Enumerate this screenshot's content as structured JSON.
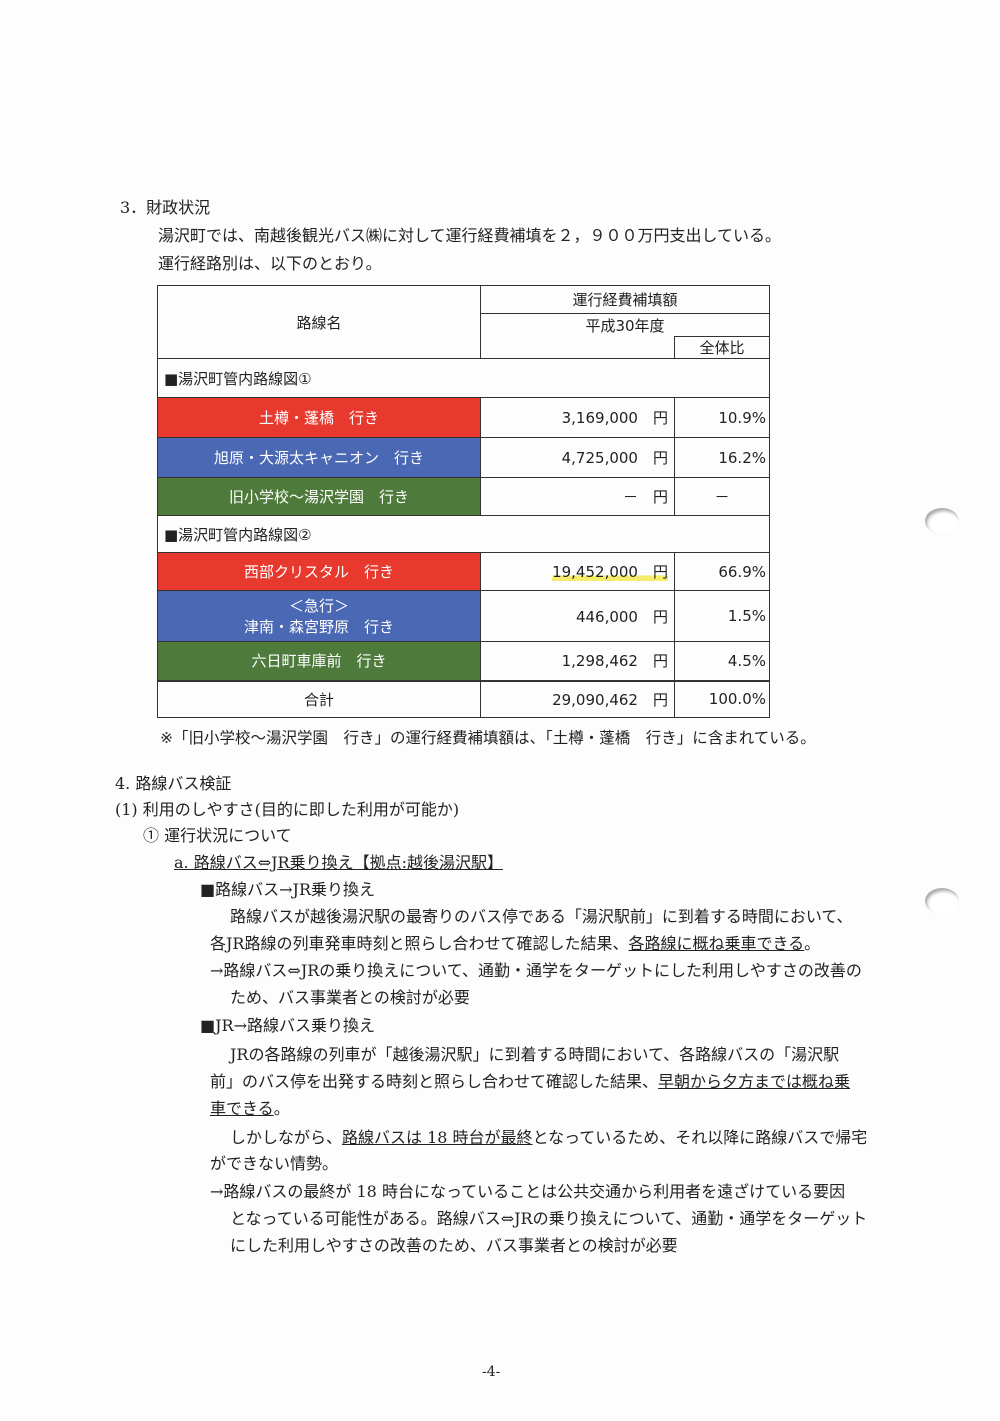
{
  "section3": {
    "heading": "3．財政状況",
    "line1": "湯沢町では、南越後観光バス㈱に対して運行経費補填を２，９００万円支出している。",
    "line2": "運行経路別は、以下のとおり。"
  },
  "table": {
    "col_route": "路線名",
    "col_subsidy": "運行経費補填額",
    "col_year": "平成30年度",
    "col_ratio": "全体比",
    "group1": "■湯沢町管内路線図①",
    "group2": "■湯沢町管内路線図②",
    "rows": [
      {
        "name": "土樽・蓬橋　行き",
        "amount": "3,169,000",
        "unit": "円",
        "ratio": "10.9%",
        "color": "#e8392e"
      },
      {
        "name": "旭原・大源太キャニオン　行き",
        "amount": "4,725,000",
        "unit": "円",
        "ratio": "16.2%",
        "color": "#4a68b3"
      },
      {
        "name": "旧小学校～湯沢学園　行き",
        "amount": "－",
        "unit": "円",
        "ratio": "－",
        "color": "#4e7a3b"
      },
      {
        "name": "西部クリスタル　行き",
        "amount": "19,452,000",
        "unit": "円",
        "ratio": "66.9%",
        "color": "#e8392e"
      },
      {
        "name_line1": "＜急行＞",
        "name": "津南・森宮野原　行き",
        "amount": "446,000",
        "unit": "円",
        "ratio": "1.5%",
        "color": "#4a68b3"
      },
      {
        "name": "六日町車庫前　行き",
        "amount": "1,298,462",
        "unit": "円",
        "ratio": "4.5%",
        "color": "#4e7a3b"
      }
    ],
    "total": {
      "label": "合計",
      "amount": "29,090,462",
      "unit": "円",
      "ratio": "100.0%"
    },
    "note": "※「旧小学校～湯沢学園　行き」の運行経費補填額は、「土樽・蓬橋　行き」に含まれている。"
  },
  "section4": {
    "heading": "4. 路線バス検証",
    "sub1": "(1) 利用のしやすさ(目的に即した利用が可能か)",
    "sub2": "① 運行状況について",
    "sub3": "a. 路線バス⇔JR乗り換え【拠点:越後湯沢駅】",
    "b1_title": "■路線バス→JR乗り換え",
    "b1_p1": "路線バスが越後湯沢駅の最寄りのバス停である「湯沢駅前」に到着する時間において、",
    "b1_p2a": "各JR路線の列車発車時刻と照らし合わせて確認した結果、",
    "b1_p2b": "各路線に概ね乗車できる",
    "b1_p2c": "。",
    "b1_a1": "→路線バス⇔JRの乗り換えについて、通勤・通学をターゲットにした利用しやすさの改善の",
    "b1_a2": "ため、バス事業者との検討が必要",
    "b2_title": "■JR→路線バス乗り換え",
    "b2_p1": "JRの各路線の列車が「越後湯沢駅」に到着する時間において、各路線バスの「湯沢駅",
    "b2_p2a": "前」のバス停を出発する時刻と照らし合わせて確認した結果、",
    "b2_p2b": "早朝から夕方までは概ね乗",
    "b2_p3a": "車できる",
    "b2_p3b": "。",
    "b2_q1a": "しかしながら、",
    "b2_q1b": "路線バスは 18 時台が最終",
    "b2_q1c": "となっているため、それ以降に路線バスで帰宅",
    "b2_q2": "ができない情勢。",
    "b2_a1": "→路線バスの最終が 18 時台になっていることは公共交通から利用者を遠ざけている要因",
    "b2_a2": "となっている可能性がある。路線バス⇔JRの乗り換えについて、通勤・通学をターゲット",
    "b2_a3": "にした利用しやすさの改善のため、バス事業者との検討が必要"
  },
  "page_number": "-4-"
}
